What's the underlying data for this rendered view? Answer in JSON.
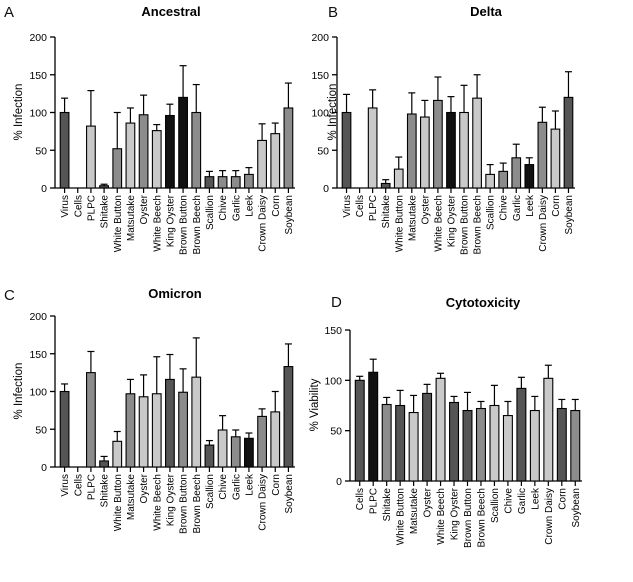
{
  "figure": {
    "panels": "four bar charts"
  },
  "colors": {
    "dark": "#555555",
    "mid": "#8c8c8c",
    "light": "#c9c9c9",
    "black": "#111111",
    "axis": "#000000"
  },
  "chart_data": [
    {
      "letter": "A",
      "type": "bar",
      "title": "Ancestral",
      "ylabel": "% Infection",
      "ylim": [
        0,
        200
      ],
      "yticks": [
        0,
        50,
        100,
        150,
        200
      ],
      "categories": [
        "Virus",
        "Cells",
        "PLPC",
        "Shitake",
        "White Button",
        "Matsutake",
        "Oyster",
        "White Beech",
        "King Oyster",
        "Brown Button",
        "Brown Beech",
        "Scallion",
        "Chive",
        "Garlic",
        "Leek",
        "Crown Daisy",
        "Corn",
        "Soybean"
      ],
      "values": [
        100,
        0,
        82,
        3,
        52,
        86,
        97,
        76,
        96,
        120,
        100,
        15,
        15,
        15,
        18,
        63,
        72,
        106
      ],
      "errors": [
        19,
        0,
        47,
        2,
        48,
        20,
        26,
        8,
        15,
        42,
        37,
        7,
        8,
        8,
        9,
        22,
        14,
        33
      ],
      "shades": [
        "dark",
        "none",
        "light",
        "dark",
        "mid",
        "light",
        "mid",
        "light",
        "black",
        "black",
        "mid",
        "dark",
        "mid",
        "mid",
        "mid",
        "light",
        "light",
        "mid"
      ]
    },
    {
      "letter": "B",
      "type": "bar",
      "title": "Delta",
      "ylabel": "% Infection",
      "ylim": [
        0,
        200
      ],
      "yticks": [
        0,
        50,
        100,
        150,
        200
      ],
      "categories": [
        "Virus",
        "Cells",
        "PLPC",
        "Shitake",
        "White Button",
        "Matsutake",
        "Oyster",
        "White Beech",
        "King Oyster",
        "Brown Button",
        "Brown Beech",
        "Scallion",
        "Chive",
        "Garlic",
        "Leek",
        "Crown Daisy",
        "Corn",
        "Soybean"
      ],
      "values": [
        100,
        0,
        106,
        6,
        25,
        98,
        94,
        116,
        100,
        100,
        119,
        18,
        22,
        40,
        31,
        87,
        78,
        120
      ],
      "errors": [
        24,
        0,
        24,
        5,
        16,
        28,
        22,
        31,
        21,
        36,
        31,
        13,
        11,
        18,
        9,
        20,
        24,
        34
      ],
      "shades": [
        "dark",
        "none",
        "light",
        "dark",
        "light",
        "mid",
        "light",
        "mid",
        "black",
        "light",
        "light",
        "light",
        "mid",
        "mid",
        "black",
        "mid",
        "light",
        "dark"
      ]
    },
    {
      "letter": "C",
      "type": "bar",
      "title": "Omicron",
      "ylabel": "% Infection",
      "ylim": [
        0,
        200
      ],
      "yticks": [
        0,
        50,
        100,
        150,
        200
      ],
      "categories": [
        "Virus",
        "Cells",
        "PLPC",
        "Shitake",
        "White Button",
        "Matsutake",
        "Oyster",
        "White Beech",
        "King Oyster",
        "Brown Button",
        "Brown Beech",
        "Scallion",
        "Chive",
        "Garlic",
        "Leek",
        "Crown Daisy",
        "Corn",
        "Soybean"
      ],
      "values": [
        100,
        0,
        125,
        8,
        34,
        97,
        93,
        97,
        116,
        99,
        119,
        29,
        49,
        40,
        38,
        67,
        73,
        133
      ],
      "errors": [
        10,
        0,
        28,
        6,
        13,
        19,
        29,
        49,
        33,
        31,
        52,
        6,
        19,
        9,
        7,
        10,
        27,
        30
      ],
      "shades": [
        "dark",
        "none",
        "mid",
        "dark",
        "light",
        "mid",
        "light",
        "light",
        "dark",
        "mid",
        "light",
        "dark",
        "light",
        "mid",
        "black",
        "mid",
        "light",
        "dark"
      ]
    },
    {
      "letter": "D",
      "type": "bar",
      "title": "Cytotoxicity",
      "ylabel": "% Viability",
      "ylim": [
        0,
        150
      ],
      "yticks": [
        0,
        50,
        100,
        150
      ],
      "categories": [
        "Cells",
        "PLPC",
        "Shitake",
        "White Button",
        "Matsutake",
        "Oyster",
        "White Beech",
        "King Oyster",
        "Brown Button",
        "Brown Beech",
        "Scallion",
        "Chive",
        "Garlic",
        "Leek",
        "Crown Daisy",
        "Corn",
        "Soybean"
      ],
      "values": [
        100,
        108,
        76,
        75,
        68,
        87,
        102,
        78,
        70,
        72,
        75,
        65,
        92,
        70,
        102,
        72,
        70
      ],
      "errors": [
        4,
        13,
        7,
        15,
        17,
        9,
        5,
        6,
        18,
        7,
        20,
        14,
        11,
        14,
        13,
        9,
        11
      ],
      "shades": [
        "dark",
        "black",
        "mid",
        "dark",
        "light",
        "dark",
        "light",
        "dark",
        "dark",
        "mid",
        "light",
        "light",
        "dark",
        "light",
        "light",
        "dark",
        "mid"
      ]
    }
  ]
}
